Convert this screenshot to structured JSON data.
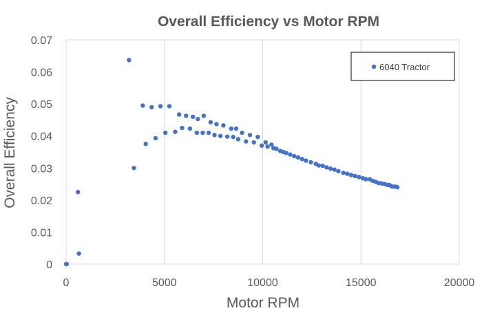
{
  "chart_data": {
    "type": "scatter",
    "title": "Overall Efficiency  vs Motor RPM",
    "xlabel": "Motor RPM",
    "ylabel": "Overall Efficiency",
    "xlim": [
      0,
      20000
    ],
    "ylim": [
      0,
      0.07
    ],
    "x_ticks": [
      0,
      5000,
      10000,
      15000,
      20000
    ],
    "x_tick_labels": [
      "0",
      "5000",
      "10000",
      "15000",
      "20000"
    ],
    "y_ticks": [
      0,
      0.01,
      0.02,
      0.03,
      0.04,
      0.05,
      0.06,
      0.07
    ],
    "y_tick_labels": [
      "0",
      "0.01",
      "0.02",
      "0.03",
      "0.04",
      "0.05",
      "0.06",
      "0.07"
    ],
    "grid": {
      "vertical": true,
      "horizontal": false
    },
    "legend_position": "top-right",
    "marker_color": "#4472C4",
    "series": [
      {
        "name": "6040 Tractor",
        "points": [
          [
            0,
            0
          ],
          [
            30,
            0
          ],
          [
            600,
            0.0225
          ],
          [
            650,
            0.0033
          ],
          [
            3200,
            0.0637
          ],
          [
            3450,
            0.03
          ],
          [
            3900,
            0.0495
          ],
          [
            4050,
            0.0375
          ],
          [
            4350,
            0.049
          ],
          [
            4550,
            0.0393
          ],
          [
            4800,
            0.0493
          ],
          [
            5050,
            0.041
          ],
          [
            5250,
            0.0493
          ],
          [
            5550,
            0.0413
          ],
          [
            5750,
            0.0467
          ],
          [
            5900,
            0.0425
          ],
          [
            6100,
            0.0463
          ],
          [
            6300,
            0.0423
          ],
          [
            6450,
            0.046
          ],
          [
            6650,
            0.041
          ],
          [
            6700,
            0.0453
          ],
          [
            6950,
            0.041
          ],
          [
            7000,
            0.0463
          ],
          [
            7250,
            0.041
          ],
          [
            7350,
            0.0443
          ],
          [
            7550,
            0.0403
          ],
          [
            7650,
            0.0437
          ],
          [
            7850,
            0.04
          ],
          [
            8000,
            0.0433
          ],
          [
            8200,
            0.0398
          ],
          [
            8400,
            0.0423
          ],
          [
            8500,
            0.0397
          ],
          [
            8650,
            0.0423
          ],
          [
            8750,
            0.039
          ],
          [
            8950,
            0.041
          ],
          [
            9150,
            0.0383
          ],
          [
            9350,
            0.0403
          ],
          [
            9550,
            0.038
          ],
          [
            9750,
            0.0397
          ],
          [
            9950,
            0.037
          ],
          [
            10150,
            0.038
          ],
          [
            10250,
            0.0367
          ],
          [
            10450,
            0.0373
          ],
          [
            10550,
            0.0362
          ],
          [
            10700,
            0.036
          ],
          [
            10900,
            0.0353
          ],
          [
            11050,
            0.035
          ],
          [
            11200,
            0.0347
          ],
          [
            11400,
            0.0342
          ],
          [
            11600,
            0.0337
          ],
          [
            11800,
            0.0333
          ],
          [
            12000,
            0.0328
          ],
          [
            12200,
            0.0323
          ],
          [
            12450,
            0.0318
          ],
          [
            12700,
            0.0313
          ],
          [
            12850,
            0.0308
          ],
          [
            13050,
            0.0307
          ],
          [
            13250,
            0.0302
          ],
          [
            13450,
            0.0298
          ],
          [
            13650,
            0.0295
          ],
          [
            13850,
            0.029
          ],
          [
            14100,
            0.0285
          ],
          [
            14300,
            0.0282
          ],
          [
            14500,
            0.0278
          ],
          [
            14700,
            0.0275
          ],
          [
            14900,
            0.0272
          ],
          [
            15100,
            0.0268
          ],
          [
            15250,
            0.0265
          ],
          [
            15450,
            0.0265
          ],
          [
            15600,
            0.026
          ],
          [
            15750,
            0.0257
          ],
          [
            15900,
            0.0253
          ],
          [
            16050,
            0.0252
          ],
          [
            16200,
            0.025
          ],
          [
            16350,
            0.0247
          ],
          [
            16450,
            0.0247
          ],
          [
            16550,
            0.0243
          ],
          [
            16650,
            0.0242
          ],
          [
            16750,
            0.0242
          ],
          [
            16850,
            0.024
          ]
        ]
      }
    ]
  }
}
